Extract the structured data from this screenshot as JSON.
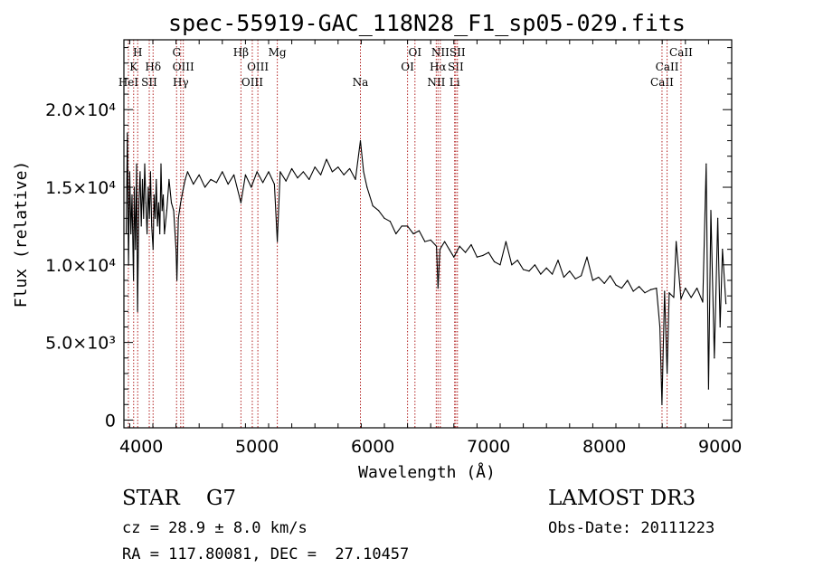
{
  "chart_data": {
    "type": "line",
    "title": "spec-55919-GAC_118N28_F1_sp05-029.fits",
    "xlabel": "Wavelength (Å)",
    "ylabel": "Flux (relative)",
    "xlim": [
      3850,
      9100
    ],
    "ylim": [
      -500,
      24500
    ],
    "x_ticks": [
      4000,
      5000,
      6000,
      7000,
      8000,
      9000
    ],
    "y_ticks": [
      {
        "value": 0,
        "label": "0"
      },
      {
        "value": 5000,
        "label": "5.0×10³"
      },
      {
        "value": 10000,
        "label": "1.0×10⁴"
      },
      {
        "value": 15000,
        "label": "1.5×10⁴"
      },
      {
        "value": 20000,
        "label": "2.0×10⁴"
      }
    ],
    "series": [
      {
        "name": "flux",
        "x": [
          3870,
          3880,
          3890,
          3900,
          3910,
          3920,
          3933,
          3940,
          3950,
          3960,
          3968,
          3980,
          3990,
          4000,
          4010,
          4020,
          4030,
          4040,
          4050,
          4060,
          4070,
          4080,
          4090,
          4102,
          4110,
          4120,
          4130,
          4140,
          4150,
          4160,
          4170,
          4180,
          4190,
          4200,
          4220,
          4240,
          4260,
          4280,
          4300,
          4308,
          4320,
          4340,
          4360,
          4380,
          4400,
          4450,
          4500,
          4550,
          4600,
          4650,
          4700,
          4750,
          4800,
          4861,
          4900,
          4950,
          5000,
          5050,
          5100,
          5150,
          5175,
          5200,
          5250,
          5300,
          5350,
          5400,
          5450,
          5500,
          5550,
          5600,
          5650,
          5700,
          5750,
          5800,
          5850,
          5893,
          5920,
          5950,
          6000,
          6050,
          6100,
          6150,
          6200,
          6250,
          6300,
          6350,
          6400,
          6450,
          6500,
          6550,
          6563,
          6580,
          6620,
          6660,
          6700,
          6750,
          6800,
          6850,
          6900,
          6950,
          7000,
          7050,
          7100,
          7150,
          7200,
          7250,
          7300,
          7350,
          7400,
          7450,
          7500,
          7550,
          7600,
          7650,
          7700,
          7750,
          7800,
          7850,
          7900,
          7950,
          8000,
          8050,
          8100,
          8150,
          8200,
          8250,
          8300,
          8350,
          8400,
          8450,
          8480,
          8498,
          8520,
          8542,
          8560,
          8600,
          8620,
          8662,
          8700,
          8750,
          8800,
          8850,
          8880,
          8900,
          8920,
          8950,
          8980,
          9000,
          9020,
          9050
        ],
        "y": [
          12000,
          18500,
          10000,
          16000,
          12000,
          14500,
          9000,
          15000,
          11000,
          16500,
          7000,
          14000,
          16000,
          12500,
          15500,
          13000,
          16500,
          14000,
          12000,
          15000,
          13000,
          16000,
          12500,
          11000,
          14500,
          13000,
          15500,
          12500,
          14000,
          12000,
          16500,
          13500,
          14500,
          12000,
          13500,
          15500,
          14000,
          13500,
          11000,
          9000,
          13000,
          14000,
          14800,
          15500,
          16000,
          15200,
          15800,
          15000,
          15500,
          15300,
          16000,
          15200,
          15800,
          14000,
          15800,
          15000,
          16000,
          15300,
          16000,
          15200,
          11500,
          16000,
          15400,
          16200,
          15600,
          16000,
          15500,
          16300,
          15800,
          16800,
          16000,
          16300,
          15800,
          16200,
          15500,
          18000,
          16000,
          15000,
          13800,
          13500,
          13000,
          12800,
          12000,
          12500,
          12500,
          12000,
          12200,
          11500,
          11600,
          11200,
          8500,
          11000,
          11500,
          11000,
          10500,
          11200,
          10800,
          11300,
          10500,
          10600,
          10800,
          10200,
          10000,
          11500,
          10000,
          10300,
          9700,
          9600,
          10000,
          9400,
          9800,
          9400,
          10300,
          9200,
          9600,
          9100,
          9300,
          10500,
          9000,
          9200,
          8800,
          9300,
          8700,
          8500,
          9000,
          8300,
          8600,
          8200,
          8400,
          8500,
          6000,
          1000,
          8300,
          3000,
          8200,
          7900,
          11500,
          7800,
          8500,
          7900,
          8500,
          7600,
          16500,
          2000,
          13500,
          4000,
          13000,
          6000,
          11000,
          7500
        ]
      }
    ],
    "lines": [
      {
        "name": "Hε",
        "label": "HeI",
        "x": 3889,
        "row": 3
      },
      {
        "name": "K",
        "label": "K",
        "x": 3934,
        "row": 2
      },
      {
        "name": "H",
        "label": "H",
        "x": 3969,
        "row": 1
      },
      {
        "name": "SII",
        "label": "SII",
        "x": 4069,
        "row": 3
      },
      {
        "name": "Hδ",
        "label": "Hδ",
        "x": 4102,
        "row": 2
      },
      {
        "name": "G",
        "label": "G",
        "x": 4305,
        "row": 1
      },
      {
        "name": "Hγ",
        "label": "Hγ",
        "x": 4341,
        "row": 3
      },
      {
        "name": "OIII 4363",
        "label": "OIII",
        "x": 4363,
        "row": 2
      },
      {
        "name": "Hβ",
        "label": "Hβ",
        "x": 4861,
        "row": 1
      },
      {
        "name": "OIII 4959",
        "label": "OIII",
        "x": 4959,
        "row": 3
      },
      {
        "name": "OIII 5007",
        "label": "OIII",
        "x": 5007,
        "row": 2
      },
      {
        "name": "Mg",
        "label": "Mg",
        "x": 5175,
        "row": 1
      },
      {
        "name": "Na",
        "label": "Na",
        "x": 5893,
        "row": 3
      },
      {
        "name": "OI 6300",
        "label": "OI",
        "x": 6300,
        "row": 2
      },
      {
        "name": "OI 6364",
        "label": "OI",
        "x": 6364,
        "row": 1
      },
      {
        "name": "NII 6548",
        "label": "NII",
        "x": 6548,
        "row": 3
      },
      {
        "name": "Hα",
        "label": "Hα",
        "x": 6563,
        "row": 2
      },
      {
        "name": "NII 6583",
        "label": "NII",
        "x": 6583,
        "row": 1
      },
      {
        "name": "Li",
        "label": "Li",
        "x": 6707,
        "row": 3
      },
      {
        "name": "SII 6716",
        "label": "SII",
        "x": 6716,
        "row": 2
      },
      {
        "name": "SII 6731",
        "label": "SII",
        "x": 6731,
        "row": 1
      },
      {
        "name": "CaII 8498",
        "label": "CaII",
        "x": 8498,
        "row": 3
      },
      {
        "name": "CaII 8542",
        "label": "CaII",
        "x": 8542,
        "row": 2
      },
      {
        "name": "CaII 8662",
        "label": "CaII",
        "x": 8662,
        "row": 1
      }
    ],
    "colors": {
      "line": "#000000",
      "marker": "#b22222"
    }
  },
  "info": {
    "class_line": "STAR    G7",
    "survey": "LAMOST DR3",
    "cz": "cz = 28.9 ± 8.0 km/s",
    "obs_date": "Obs-Date: 20111223",
    "coords": "RA = 117.80081, DEC =  27.10457"
  }
}
